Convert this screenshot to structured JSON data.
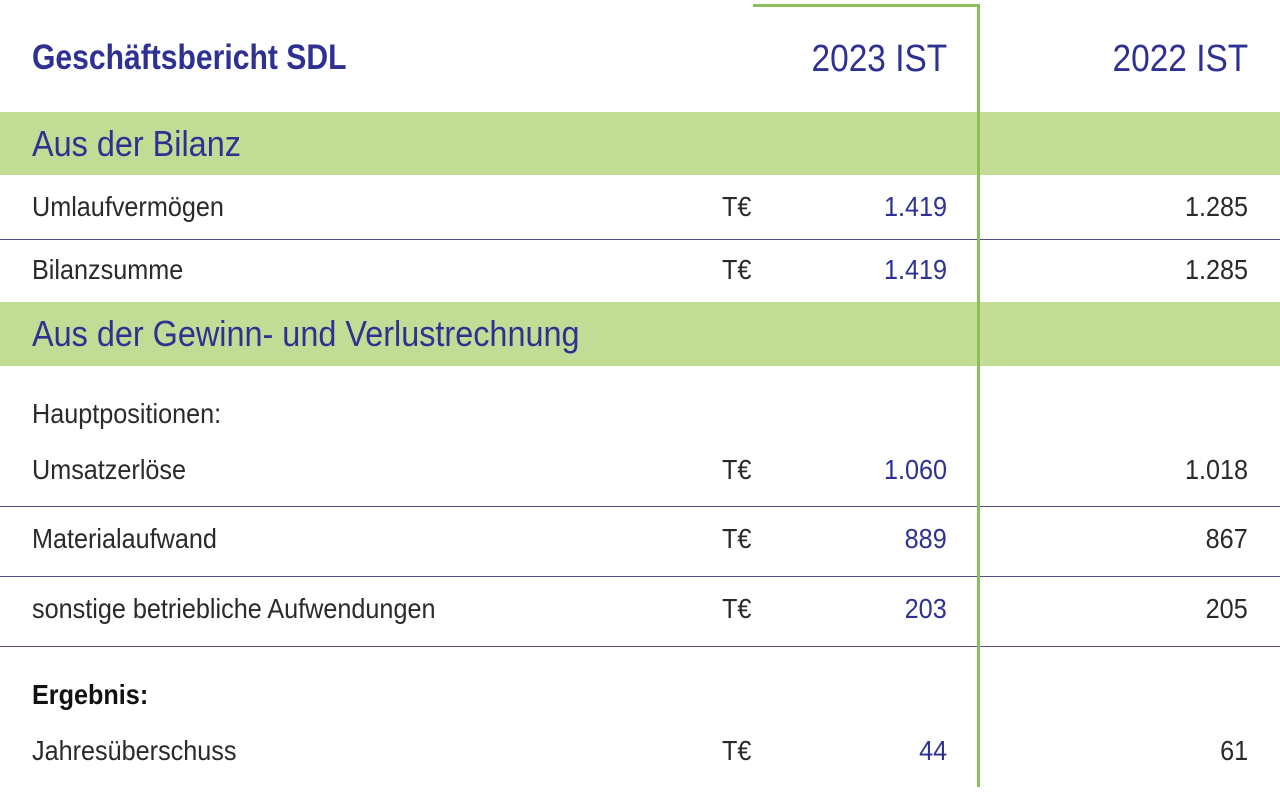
{
  "header": {
    "title": "Geschäftsbericht SDL",
    "col_2023": "2023 IST",
    "col_2022": "2022 IST"
  },
  "sections": {
    "bilanz": "Aus der Bilanz",
    "guv": "Aus der Gewinn- und Verlustrechnung"
  },
  "labels": {
    "hauptpositionen": "Hauptpositionen:",
    "ergebnis": "Ergebnis:"
  },
  "rows": [
    {
      "label": "Umlaufvermögen",
      "unit": "T€",
      "v2023": "1.419",
      "v2022": "1.285"
    },
    {
      "label": "Bilanzsumme",
      "unit": "T€",
      "v2023": "1.419",
      "v2022": "1.285"
    },
    {
      "label": "Umsatzerlöse",
      "unit": "T€",
      "v2023": "1.060",
      "v2022": "1.018"
    },
    {
      "label": "Materialaufwand",
      "unit": "T€",
      "v2023": "889",
      "v2022": "867"
    },
    {
      "label": "sonstige betriebliche Aufwendungen",
      "unit": "T€",
      "v2023": "203",
      "v2022": "205"
    },
    {
      "label": "Jahresüberschuss",
      "unit": "T€",
      "v2023": "44",
      "v2022": "61"
    }
  ],
  "colors": {
    "accent_blue": "#2e3192",
    "band_green": "#c2dc95",
    "divider_green": "#8cbf5a"
  }
}
